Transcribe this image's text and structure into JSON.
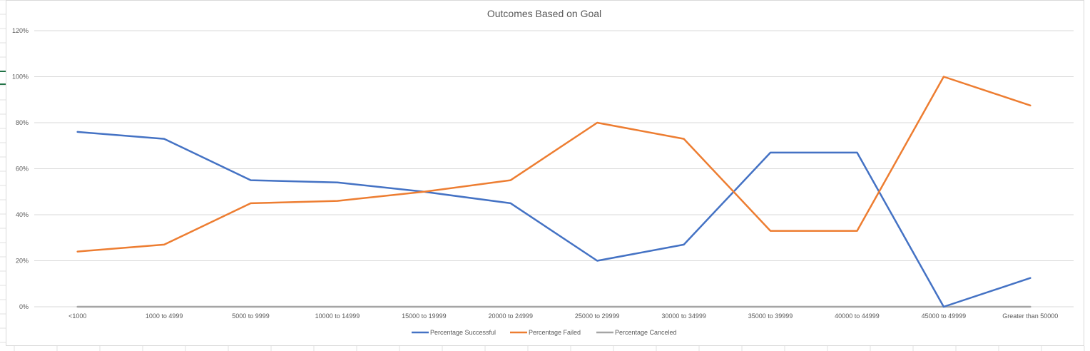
{
  "chart_data": {
    "type": "line",
    "title": "Outcomes Based on Goal",
    "xlabel": "",
    "ylabel": "",
    "categories": [
      "<1000",
      "1000 to 4999",
      "5000 to 9999",
      "10000 to 14999",
      "15000 to 19999",
      "20000 to 24999",
      "25000 to 29999",
      "30000 to 34999",
      "35000 to 39999",
      "40000 to 44999",
      "45000 to 49999",
      "Greater than 50000"
    ],
    "ylim": [
      0,
      120
    ],
    "yticks": [
      "0%",
      "20%",
      "40%",
      "60%",
      "80%",
      "100%",
      "120%"
    ],
    "ytick_values": [
      0,
      20,
      40,
      60,
      80,
      100,
      120
    ],
    "grid": true,
    "legend_position": "bottom",
    "series": [
      {
        "name": "Percentage Successful",
        "color": "#4472C4",
        "values": [
          76,
          73,
          55,
          54,
          50,
          45,
          20,
          27,
          67,
          67,
          0,
          12.5
        ]
      },
      {
        "name": "Percentage Failed",
        "color": "#ED7D31",
        "values": [
          24,
          27,
          45,
          46,
          50,
          55,
          80,
          73,
          33,
          33,
          100,
          87.5
        ]
      },
      {
        "name": "Percentage Canceled",
        "color": "#A5A5A5",
        "values": [
          0,
          0,
          0,
          0,
          0,
          0,
          0,
          0,
          0,
          0,
          0,
          0
        ]
      }
    ]
  }
}
